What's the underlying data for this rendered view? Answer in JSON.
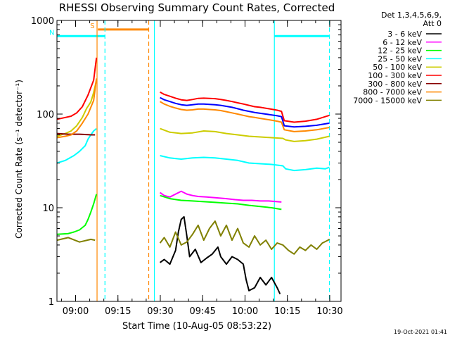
{
  "chart_data": {
    "type": "line",
    "title": "RHESSI Observing Summary Count Rates, Corrected",
    "xlabel": "Start Time (10-Aug-05 08:53:22)",
    "ylabel": "Corrected Count Rate (s⁻¹ detector⁻¹)",
    "y_scale": "log",
    "ylim": [
      1,
      1000
    ],
    "x_unit": "minutes after 08:53:22",
    "xlim": [
      0,
      100.6
    ],
    "x_ticks": [
      {
        "x": 6.6,
        "label": "09:00"
      },
      {
        "x": 21.6,
        "label": "09:15"
      },
      {
        "x": 36.6,
        "label": "09:30"
      },
      {
        "x": 51.6,
        "label": "09:45"
      },
      {
        "x": 66.6,
        "label": "10:00"
      },
      {
        "x": 81.6,
        "label": "10:15"
      },
      {
        "x": 96.6,
        "label": "10:30"
      }
    ],
    "y_ticks": [
      {
        "y": 1,
        "label": "1"
      },
      {
        "y": 10,
        "label": "10"
      },
      {
        "y": 100,
        "label": "100"
      },
      {
        "y": 1000,
        "label": "1000"
      }
    ],
    "legend": {
      "title_lines": [
        "Det 1,3,4,5,6,9,",
        "Att 0"
      ],
      "placement": "right"
    },
    "series": [
      {
        "name": "3 - 6 keV",
        "color": "#000000",
        "points": [
          [
            36.5,
            2.6
          ],
          [
            38,
            2.8
          ],
          [
            40,
            2.5
          ],
          [
            42,
            3.5
          ],
          [
            43,
            5.5
          ],
          [
            44,
            7.5
          ],
          [
            45,
            8
          ],
          [
            46,
            5
          ],
          [
            47,
            3
          ],
          [
            49,
            3.6
          ],
          [
            51,
            2.6
          ],
          [
            53,
            2.9
          ],
          [
            55,
            3.2
          ],
          [
            57,
            3.8
          ],
          [
            58,
            3
          ],
          [
            60,
            2.5
          ],
          [
            62,
            3
          ],
          [
            64,
            2.8
          ],
          [
            66,
            2.5
          ],
          [
            67,
            1.7
          ],
          [
            68,
            1.3
          ],
          [
            70,
            1.4
          ],
          [
            72,
            1.8
          ],
          [
            74,
            1.5
          ],
          [
            76,
            1.8
          ],
          [
            78,
            1.4
          ],
          [
            79,
            1.2
          ]
        ]
      },
      {
        "name": "6 - 12 keV",
        "color": "#ff00ff",
        "points": [
          [
            36.5,
            14.5
          ],
          [
            38,
            13.5
          ],
          [
            40,
            13
          ],
          [
            42,
            14
          ],
          [
            44,
            15
          ],
          [
            46,
            14
          ],
          [
            48,
            13.5
          ],
          [
            50,
            13.2
          ],
          [
            53,
            13
          ],
          [
            56,
            12.8
          ],
          [
            60,
            12.5
          ],
          [
            63,
            12.2
          ],
          [
            66,
            12
          ],
          [
            69,
            12
          ],
          [
            72,
            11.8
          ],
          [
            75,
            11.8
          ],
          [
            78,
            11.6
          ],
          [
            79.5,
            11.5
          ]
        ]
      },
      {
        "name": "12 - 25 keV",
        "color": "#00ff00",
        "points": [
          [
            0,
            5.2
          ],
          [
            4,
            5.3
          ],
          [
            6,
            5.5
          ],
          [
            8,
            5.8
          ],
          [
            10,
            6.5
          ],
          [
            11,
            7.5
          ],
          [
            12,
            9
          ],
          [
            13,
            11
          ],
          [
            14,
            14
          ],
          [
            36.5,
            13.5
          ],
          [
            40,
            12.5
          ],
          [
            44,
            12
          ],
          [
            48,
            11.8
          ],
          [
            52,
            11.6
          ],
          [
            56,
            11.4
          ],
          [
            60,
            11.2
          ],
          [
            64,
            11
          ],
          [
            68,
            10.6
          ],
          [
            72,
            10.3
          ],
          [
            76,
            10
          ],
          [
            79.5,
            9.6
          ]
        ]
      },
      {
        "name": "25 - 50 keV",
        "color": "#00ffff",
        "points": [
          [
            0,
            30
          ],
          [
            3,
            32
          ],
          [
            6,
            36
          ],
          [
            8,
            40
          ],
          [
            10,
            46
          ],
          [
            11,
            54
          ],
          [
            12,
            60
          ],
          [
            13,
            66
          ],
          [
            14,
            70
          ],
          [
            36.5,
            36
          ],
          [
            40,
            34
          ],
          [
            44,
            33
          ],
          [
            48,
            34
          ],
          [
            52,
            34.5
          ],
          [
            56,
            34
          ],
          [
            60,
            33
          ],
          [
            64,
            32
          ],
          [
            68,
            30
          ],
          [
            72,
            29.5
          ],
          [
            76,
            29
          ],
          [
            80,
            28
          ],
          [
            81,
            26
          ],
          [
            84,
            25
          ],
          [
            88,
            25.5
          ],
          [
            92,
            26.5
          ],
          [
            95,
            26
          ],
          [
            96.5,
            27
          ]
        ]
      },
      {
        "name": "50 - 100 keV",
        "color": "#cccc00",
        "points": [
          [
            0,
            58
          ],
          [
            3,
            62
          ],
          [
            5,
            66
          ],
          [
            7,
            75
          ],
          [
            9,
            92
          ],
          [
            10.5,
            115
          ],
          [
            12,
            135
          ],
          [
            13,
            170
          ],
          [
            14,
            230
          ],
          [
            36.5,
            70
          ],
          [
            40,
            64
          ],
          [
            44,
            62
          ],
          [
            48,
            63
          ],
          [
            52,
            66
          ],
          [
            56,
            65
          ],
          [
            60,
            62
          ],
          [
            64,
            60
          ],
          [
            68,
            58
          ],
          [
            72,
            57
          ],
          [
            76,
            56
          ],
          [
            80,
            55
          ],
          [
            81,
            53
          ],
          [
            84,
            51
          ],
          [
            88,
            52
          ],
          [
            92,
            54
          ],
          [
            96.5,
            58
          ]
        ]
      },
      {
        "name": "100 - 300 keV",
        "color": "#ff0000",
        "points": [
          [
            0,
            88
          ],
          [
            3,
            92
          ],
          [
            5,
            95
          ],
          [
            7,
            103
          ],
          [
            9,
            120
          ],
          [
            11,
            160
          ],
          [
            13,
            230
          ],
          [
            14,
            400
          ],
          [
            36.5,
            172
          ],
          [
            38,
            162
          ],
          [
            40,
            155
          ],
          [
            42,
            148
          ],
          [
            44,
            142
          ],
          [
            46,
            140
          ],
          [
            48,
            143
          ],
          [
            50,
            147
          ],
          [
            52,
            148
          ],
          [
            54,
            147
          ],
          [
            56,
            146
          ],
          [
            58,
            143
          ],
          [
            60,
            140
          ],
          [
            62,
            136
          ],
          [
            64,
            132
          ],
          [
            66,
            128
          ],
          [
            68,
            124
          ],
          [
            70,
            120
          ],
          [
            72,
            118
          ],
          [
            75,
            114
          ],
          [
            78,
            110
          ],
          [
            79.5,
            107
          ],
          [
            80.5,
            85
          ],
          [
            84,
            82
          ],
          [
            88,
            84
          ],
          [
            92,
            88
          ],
          [
            96.5,
            97
          ]
        ]
      },
      {
        "name": "300 - 800 keV",
        "color": "#880000",
        "points": [
          [
            0,
            62
          ],
          [
            4,
            61
          ],
          [
            8,
            61
          ],
          [
            12,
            60
          ],
          [
            13.5,
            60
          ]
        ]
      },
      {
        "name": "800 - 7000 keV",
        "color": "#ff8800",
        "points": [
          [
            0,
            56
          ],
          [
            3,
            58
          ],
          [
            5,
            60
          ],
          [
            7,
            66
          ],
          [
            9,
            80
          ],
          [
            11,
            100
          ],
          [
            13,
            140
          ],
          [
            14,
            240
          ],
          [
            36.5,
            136
          ],
          [
            38,
            128
          ],
          [
            40,
            121
          ],
          [
            42,
            116
          ],
          [
            44,
            112
          ],
          [
            46,
            110
          ],
          [
            48,
            111
          ],
          [
            50,
            113
          ],
          [
            52,
            113
          ],
          [
            54,
            112
          ],
          [
            56,
            111
          ],
          [
            58,
            109
          ],
          [
            60,
            106
          ],
          [
            62,
            103
          ],
          [
            64,
            100
          ],
          [
            66,
            97
          ],
          [
            68,
            94
          ],
          [
            70,
            92
          ],
          [
            72,
            90
          ],
          [
            75,
            87
          ],
          [
            78,
            84
          ],
          [
            79.5,
            82
          ],
          [
            80.5,
            68
          ],
          [
            84,
            65
          ],
          [
            88,
            66
          ],
          [
            92,
            68
          ],
          [
            96.5,
            72
          ]
        ]
      },
      {
        "name": "7000 - 15000 keV",
        "color": "#808000",
        "points": [
          [
            0,
            4.5
          ],
          [
            4,
            4.8
          ],
          [
            8,
            4.3
          ],
          [
            12,
            4.6
          ],
          [
            13.5,
            4.5
          ],
          [
            36.5,
            4.2
          ],
          [
            38,
            4.8
          ],
          [
            40,
            3.8
          ],
          [
            42,
            5.5
          ],
          [
            44,
            4
          ],
          [
            46,
            4.3
          ],
          [
            48,
            5.2
          ],
          [
            50,
            6.5
          ],
          [
            52,
            4.5
          ],
          [
            54,
            6
          ],
          [
            56,
            7.2
          ],
          [
            58,
            5
          ],
          [
            60,
            6.5
          ],
          [
            62,
            4.5
          ],
          [
            64,
            6
          ],
          [
            66,
            4.2
          ],
          [
            68,
            3.8
          ],
          [
            70,
            5
          ],
          [
            72,
            4
          ],
          [
            74,
            4.5
          ],
          [
            76,
            3.6
          ],
          [
            78,
            4.2
          ],
          [
            80,
            4
          ],
          [
            82,
            3.5
          ],
          [
            84,
            3.2
          ],
          [
            86,
            3.8
          ],
          [
            88,
            3.5
          ],
          [
            90,
            4
          ],
          [
            92,
            3.6
          ],
          [
            94,
            4.2
          ],
          [
            96,
            4.5
          ],
          [
            96.5,
            4.6
          ]
        ]
      },
      {
        "name": "Blue (unlabeled)",
        "color": "#0000ff",
        "points": [
          [
            36.5,
            150
          ],
          [
            38,
            142
          ],
          [
            40,
            136
          ],
          [
            42,
            130
          ],
          [
            44,
            126
          ],
          [
            46,
            124
          ],
          [
            48,
            126
          ],
          [
            50,
            128
          ],
          [
            52,
            128
          ],
          [
            54,
            127
          ],
          [
            56,
            126
          ],
          [
            58,
            124
          ],
          [
            60,
            121
          ],
          [
            62,
            118
          ],
          [
            64,
            114
          ],
          [
            66,
            110
          ],
          [
            68,
            107
          ],
          [
            70,
            104
          ],
          [
            72,
            102
          ],
          [
            75,
            99
          ],
          [
            78,
            96
          ],
          [
            79.5,
            94
          ],
          [
            80.5,
            75
          ],
          [
            84,
            73
          ],
          [
            88,
            74
          ],
          [
            92,
            76
          ],
          [
            96.5,
            80
          ]
        ]
      }
    ],
    "annotations": [
      {
        "kind": "bar",
        "label": "S",
        "color": "#ff8800",
        "x0": 14.5,
        "x1": 32.5,
        "y": 800
      },
      {
        "kind": "bar",
        "label": "N",
        "color": "#00ffff",
        "x0": 0,
        "x1": 17,
        "y": 680
      },
      {
        "kind": "bar",
        "label": "",
        "color": "#00ffff",
        "x0": 77,
        "x1": 96.5,
        "y": 680
      },
      {
        "kind": "vline",
        "color": "#ff8800",
        "style": "solid",
        "x": 14.2
      },
      {
        "kind": "vline",
        "color": "#00ffff",
        "style": "dashed",
        "x": 17
      },
      {
        "kind": "vline",
        "color": "#ff8800",
        "style": "dashed",
        "x": 32.5
      },
      {
        "kind": "vline",
        "color": "#00ffff",
        "style": "solid",
        "x": 34.5
      },
      {
        "kind": "vline",
        "color": "#00ffff",
        "style": "solid",
        "x": 77
      },
      {
        "kind": "vline",
        "color": "#00ffff",
        "style": "dashed",
        "x": 96.5
      }
    ],
    "timestamp": "19-Oct-2021 01:41"
  }
}
